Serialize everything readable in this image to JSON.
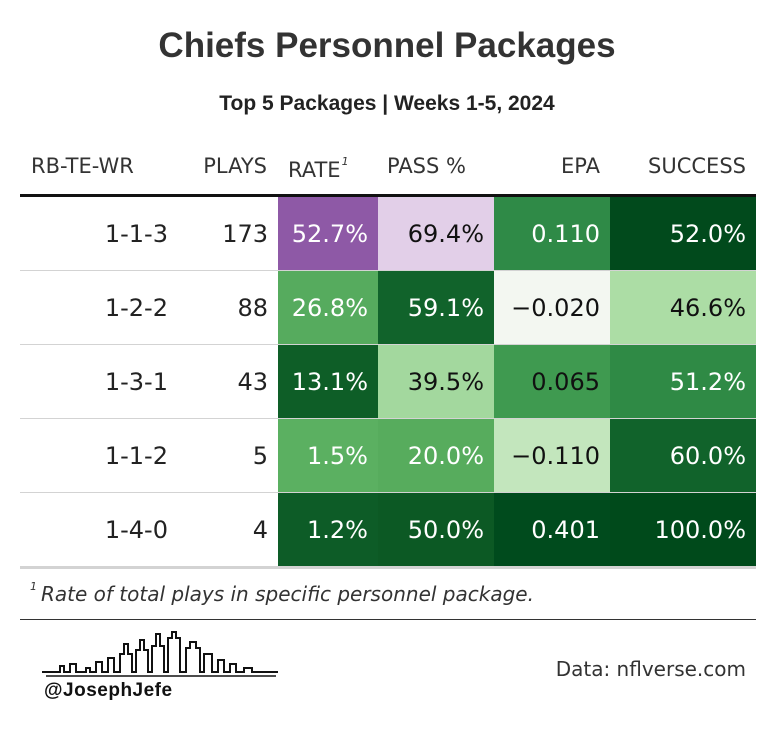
{
  "chart_data": {
    "type": "table",
    "title": "Chiefs Personnel Packages",
    "subtitle": "Top 5 Packages | Weeks 1-5, 2024",
    "columns": [
      "RB-TE-WR",
      "PLAYS",
      "RATE",
      "PASS %",
      "EPA",
      "SUCCESS"
    ],
    "rate_footnote_marker": "1",
    "rows": [
      {
        "package": "1-1-3",
        "plays": "173",
        "rate": "52.7%",
        "pass": "69.4%",
        "epa": "0.110",
        "success": "52.0%"
      },
      {
        "package": "1-2-2",
        "plays": "88",
        "rate": "26.8%",
        "pass": "59.1%",
        "epa": "−0.020",
        "success": "46.6%"
      },
      {
        "package": "1-3-1",
        "plays": "43",
        "rate": "13.1%",
        "pass": "39.5%",
        "epa": "0.065",
        "success": "51.2%"
      },
      {
        "package": "1-1-2",
        "plays": "5",
        "rate": "1.5%",
        "pass": "20.0%",
        "epa": "−0.110",
        "success": "60.0%"
      },
      {
        "package": "1-4-0",
        "plays": "4",
        "rate": "1.2%",
        "pass": "50.0%",
        "epa": "0.401",
        "success": "100.0%"
      }
    ],
    "cell_colors": {
      "rate": [
        "#8e59a6",
        "#56ab5e",
        "#0e5e27",
        "#5bb061",
        "#0d5c27"
      ],
      "pass": [
        "#e2cfe8",
        "#11632b",
        "#a3d89e",
        "#57ac5d",
        "#0c5924"
      ],
      "epa": [
        "#2f8a47",
        "#f3f7f1",
        "#3f9a50",
        "#c3e6bd",
        "#004b1d"
      ],
      "success": [
        "#014a1c",
        "#acdda5",
        "#2f8a45",
        "#11632b",
        "#004a1b"
      ]
    },
    "text_colors": {
      "rate": [
        "#ffffff",
        "#ffffff",
        "#ffffff",
        "#ffffff",
        "#ffffff"
      ],
      "pass": [
        "#111111",
        "#ffffff",
        "#111111",
        "#ffffff",
        "#ffffff"
      ],
      "epa": [
        "#ffffff",
        "#111111",
        "#111111",
        "#111111",
        "#ffffff"
      ],
      "success": [
        "#ffffff",
        "#111111",
        "#ffffff",
        "#ffffff",
        "#ffffff"
      ]
    }
  },
  "footnote": "Rate of total plays in specific personnel package.",
  "footnote_marker": "1",
  "credit_handle": "@JosephJefe",
  "source": "Data: nflverse.com"
}
